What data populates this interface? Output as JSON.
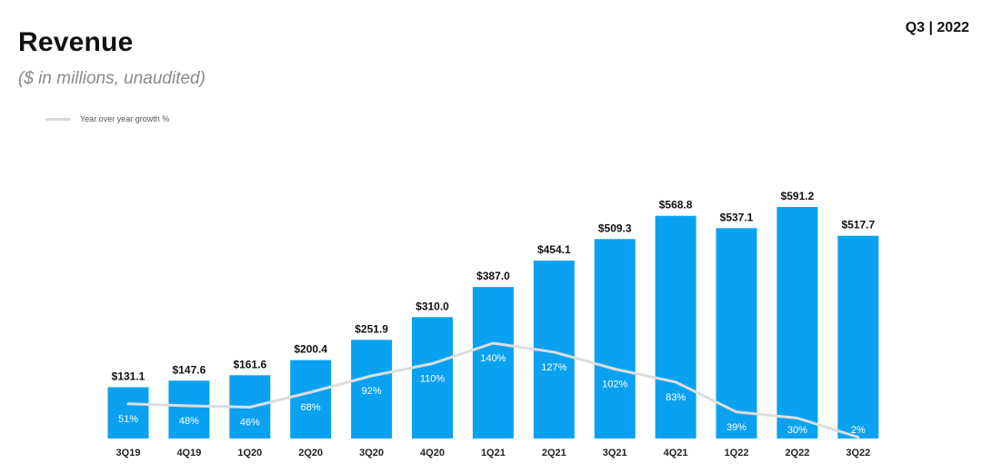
{
  "page": {
    "period": "Q3 | 2022"
  },
  "chart_data": {
    "type": "bar",
    "title": "Revenue",
    "subtitle": "($ in millions, unaudited)",
    "categories": [
      "3Q19",
      "4Q19",
      "1Q20",
      "2Q20",
      "3Q20",
      "4Q20",
      "1Q21",
      "2Q21",
      "3Q21",
      "4Q21",
      "1Q22",
      "2Q22",
      "3Q22"
    ],
    "series": [
      {
        "values": [
          131.1,
          147.6,
          161.6,
          200.4,
          251.9,
          310.0,
          387.0,
          454.1,
          509.3,
          568.8,
          537.1,
          591.2,
          517.7
        ],
        "labels": [
          "$131.1",
          "$147.6",
          "$161.6",
          "$200.4",
          "$251.9",
          "$310.0",
          "$387.0",
          "$454.1",
          "$509.3",
          "$568.8",
          "$537.1",
          "$591.2",
          "$517.7"
        ],
        "color": "#0aa2f0"
      },
      {
        "name": "Year over year growth %",
        "values": [
          51,
          48,
          46,
          68,
          92,
          110,
          140,
          127,
          102,
          83,
          39,
          30,
          2
        ],
        "labels": [
          "51%",
          "48%",
          "46%",
          "68%",
          "92%",
          "110%",
          "140%",
          "127%",
          "102%",
          "83%",
          "39%",
          "30%",
          "2%"
        ],
        "color": "#dddddd"
      }
    ],
    "ylim": [
      0,
      620
    ],
    "growth_ylim": [
      0,
      300
    ],
    "grid": false,
    "legend_position": "top-left",
    "xlabel": "",
    "ylabel": ""
  }
}
